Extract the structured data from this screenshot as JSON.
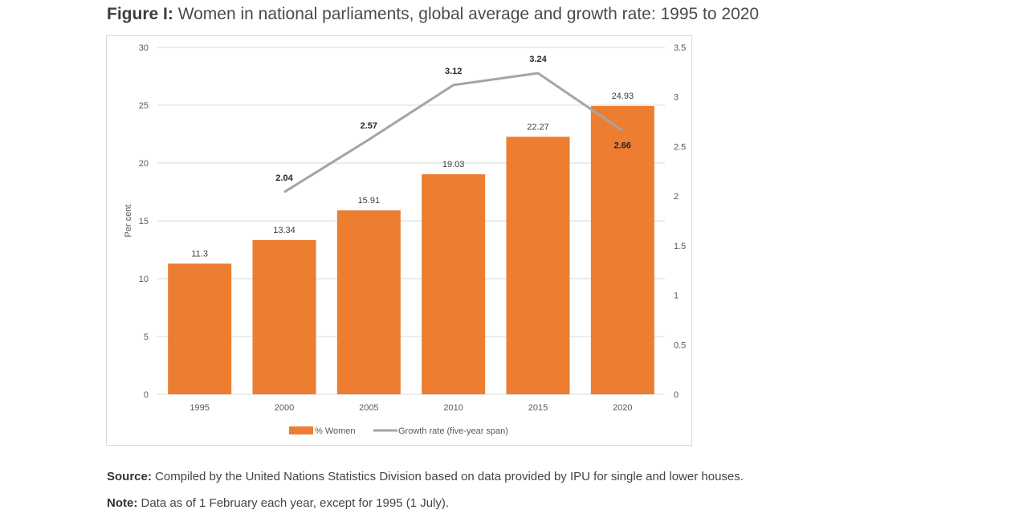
{
  "figure": {
    "label": "Figure I:",
    "title": "Women in national parliaments, global average and growth rate: 1995 to 2020"
  },
  "footnotes": {
    "source_label": "Source:",
    "source_text": "Compiled by the United Nations Statistics Division based on data provided by IPU for single and lower houses.",
    "note_label": "Note:",
    "note_text": "Data as of 1 February each year, except for 1995 (1 July)."
  },
  "colors": {
    "bar": "#ed7d31",
    "line": "#a5a5a5",
    "grid": "#d9d9d9"
  },
  "chart_data": {
    "type": "bar",
    "categories": [
      "1995",
      "2000",
      "2005",
      "2010",
      "2015",
      "2020"
    ],
    "series": [
      {
        "name": "% Women",
        "type": "bar",
        "axis": "left",
        "values": [
          11.3,
          13.34,
          15.91,
          19.03,
          22.27,
          24.93
        ]
      },
      {
        "name": "Growth rate (five-year span)",
        "type": "line",
        "axis": "right",
        "values": [
          null,
          2.04,
          2.57,
          3.12,
          3.24,
          2.66
        ]
      }
    ],
    "ylabel": "Per cent",
    "ylim": [
      0,
      30
    ],
    "yticks": [
      "0",
      "5",
      "10",
      "15",
      "20",
      "25",
      "30"
    ],
    "y2lim": [
      0,
      3.5
    ],
    "y2ticks": [
      "0",
      "0.5",
      "1",
      "1.5",
      "2",
      "2.5",
      "3",
      "3.5"
    ],
    "grid": true,
    "legend": "bottom"
  }
}
